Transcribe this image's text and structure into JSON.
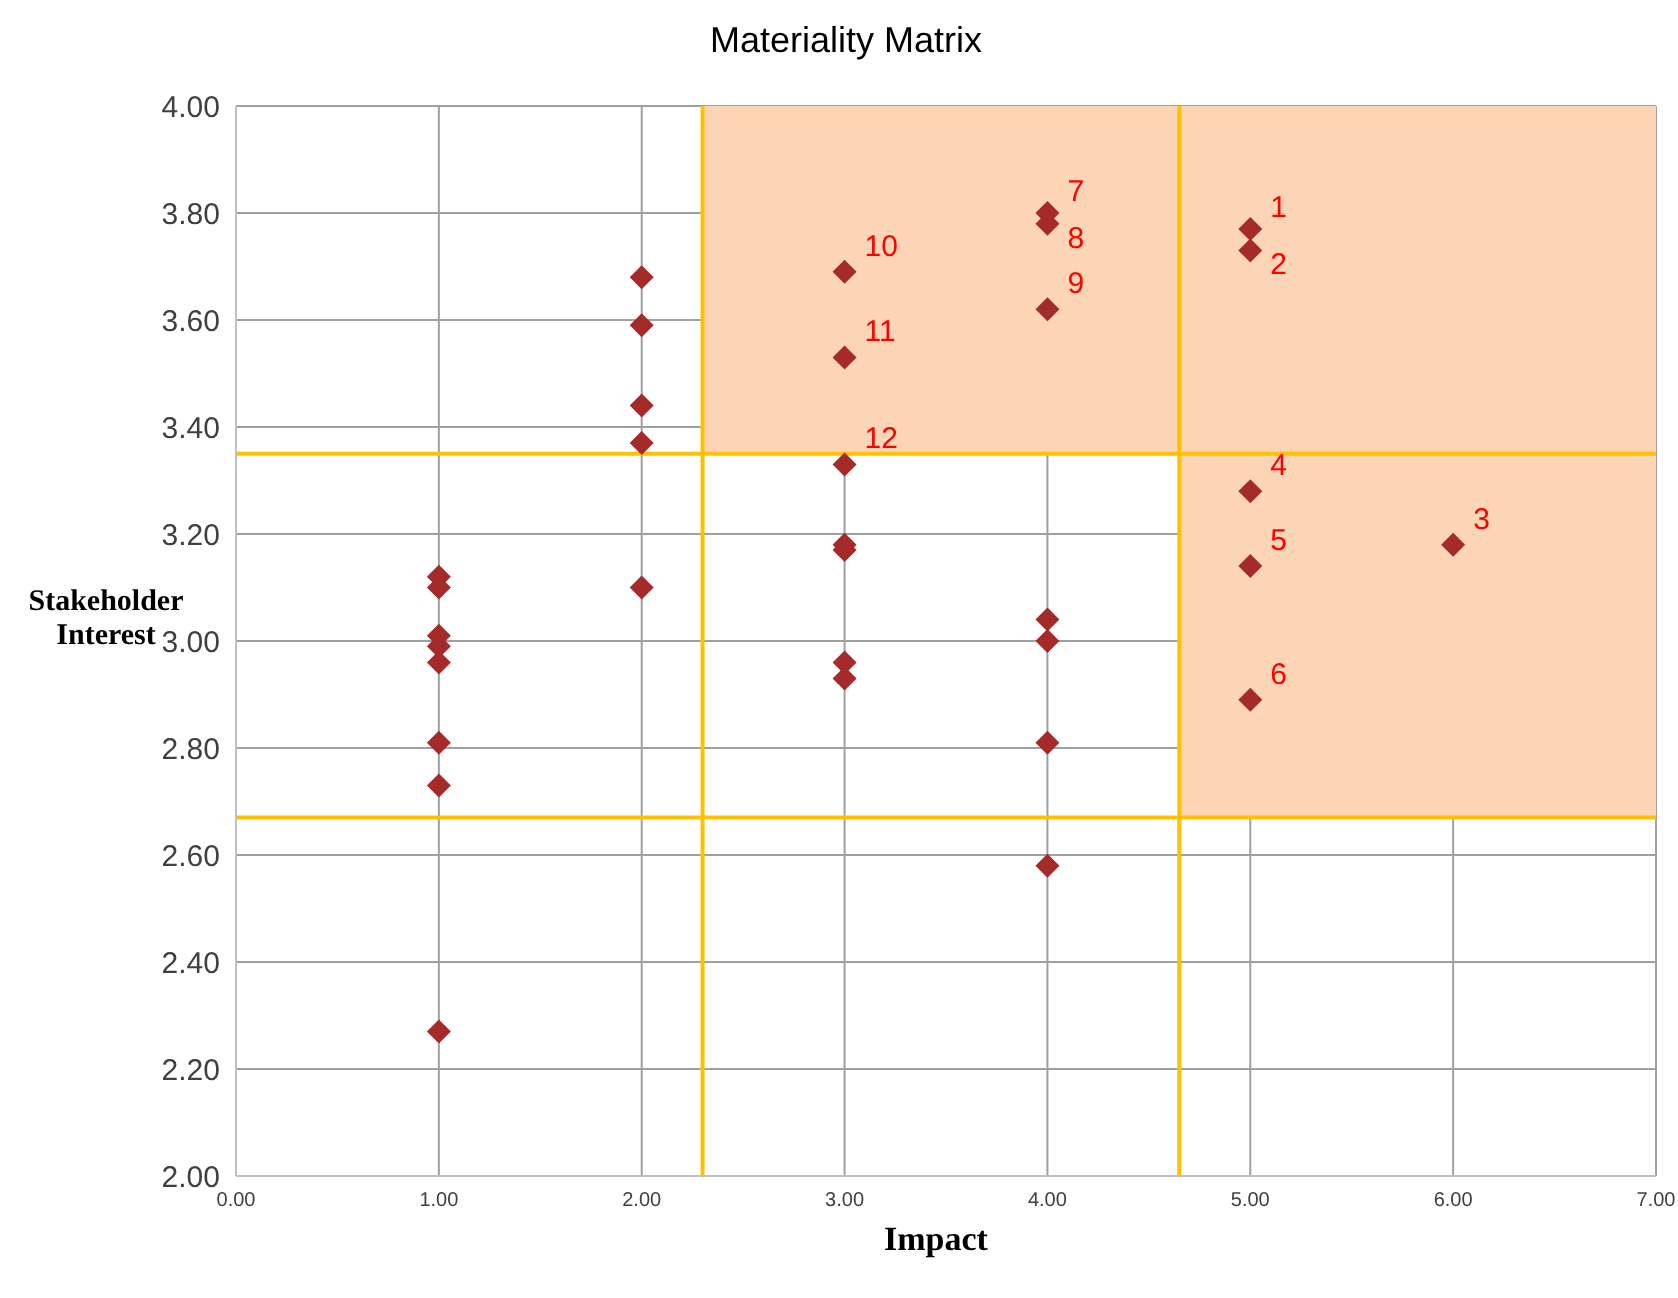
{
  "chart_data": {
    "type": "scatter",
    "title": "Materiality Matrix",
    "xlabel": "Impact",
    "ylabel": "Stakeholder Interest",
    "x": [
      1,
      1,
      1,
      1,
      1,
      1,
      1,
      1,
      2,
      2,
      2,
      2,
      2,
      3,
      3,
      3,
      3,
      3,
      3,
      3,
      4,
      4,
      4,
      4,
      4,
      4,
      4,
      5,
      5,
      5,
      5,
      5,
      6
    ],
    "series": [
      {
        "color": "#a52a2a",
        "values": [
          3.12,
          3.1,
          3.01,
          2.99,
          2.96,
          2.81,
          2.73,
          2.27,
          3.68,
          3.59,
          3.44,
          3.37,
          3.1,
          3.69,
          3.53,
          3.33,
          3.18,
          3.17,
          2.96,
          2.93,
          3.8,
          3.78,
          3.62,
          3.04,
          3.0,
          2.81,
          2.58,
          3.77,
          3.73,
          3.28,
          3.14,
          2.89,
          3.18
        ]
      }
    ],
    "annotations": [
      {
        "text": "10",
        "x": 3,
        "y": 3.69
      },
      {
        "text": "11",
        "x": 3,
        "y": 3.53
      },
      {
        "text": "12",
        "x": 3,
        "y": 3.33
      },
      {
        "text": "7",
        "x": 4,
        "y": 3.8
      },
      {
        "text": "8",
        "x": 4,
        "y": 3.78
      },
      {
        "text": "9",
        "x": 4,
        "y": 3.62
      },
      {
        "text": "1",
        "x": 5,
        "y": 3.77
      },
      {
        "text": "2",
        "x": 5,
        "y": 3.73
      },
      {
        "text": "4",
        "x": 5,
        "y": 3.28
      },
      {
        "text": "5",
        "x": 5,
        "y": 3.14
      },
      {
        "text": "6",
        "x": 5,
        "y": 2.89
      },
      {
        "text": "3",
        "x": 6,
        "y": 3.18
      }
    ],
    "marker": "diamond",
    "grid": true,
    "xlim": [
      0,
      7
    ],
    "xticks": [
      {
        "value": 0,
        "label": "0.00"
      },
      {
        "value": 1,
        "label": "1.00"
      },
      {
        "value": 2,
        "label": "2.00"
      },
      {
        "value": 3,
        "label": "3.00"
      },
      {
        "value": 4,
        "label": "4.00"
      },
      {
        "value": 5,
        "label": "5.00"
      },
      {
        "value": 6,
        "label": "6.00"
      },
      {
        "value": 7,
        "label": "7.00"
      }
    ],
    "ylim": [
      2,
      4
    ],
    "yticks": [
      {
        "value": 2,
        "label": "2.00"
      },
      {
        "value": 2.2,
        "label": "2.20"
      },
      {
        "value": 2.4,
        "label": "2.40"
      },
      {
        "value": 2.6,
        "label": "2.60"
      },
      {
        "value": 2.8,
        "label": "2.80"
      },
      {
        "value": 3,
        "label": "3.00"
      },
      {
        "value": 3.2,
        "label": "3.20"
      },
      {
        "value": 3.4,
        "label": "3.40"
      },
      {
        "value": 3.6,
        "label": "3.60"
      },
      {
        "value": 3.8,
        "label": "3.80"
      },
      {
        "value": 4,
        "label": "4.00"
      }
    ],
    "ref_lines": [
      {
        "axis": "y",
        "value": 3.35,
        "color": "#ffc000"
      },
      {
        "axis": "y",
        "value": 2.67,
        "color": "#ffc000"
      },
      {
        "axis": "x",
        "value": 2.3,
        "color": "#ffc000"
      },
      {
        "axis": "x",
        "value": 4.65,
        "color": "#ffc000"
      }
    ],
    "bands": [
      {
        "axis": "y",
        "from": 3.35,
        "to": 4,
        "color": "#fbd5b5"
      },
      {
        "axis": "x",
        "from": 4.65,
        "to": 7,
        "color": "#fbd5b5"
      }
    ]
  }
}
